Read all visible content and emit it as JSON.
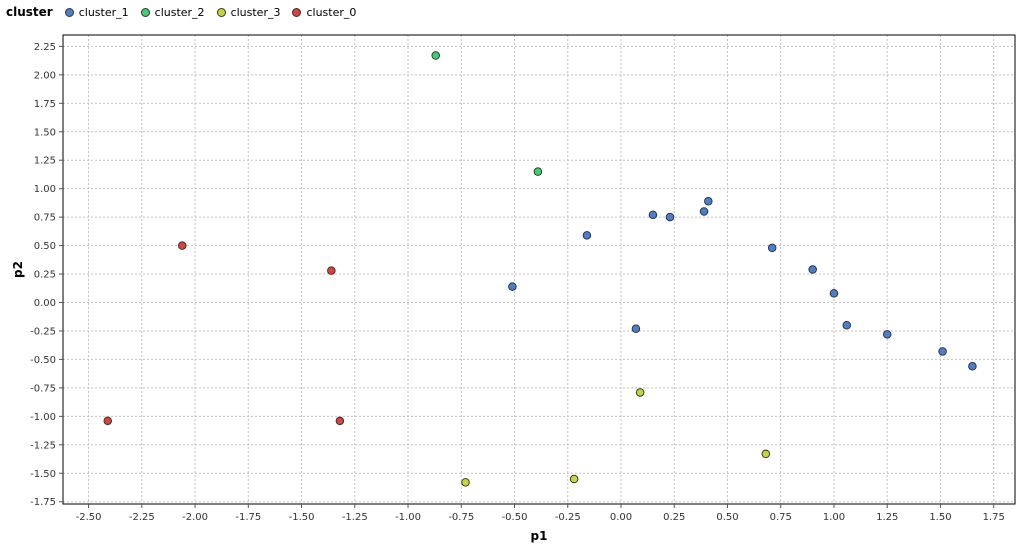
{
  "chart_data": {
    "type": "scatter",
    "title": "",
    "legend_title": "cluster",
    "legend_position": "top-left",
    "xlabel": "p1",
    "ylabel": "p2",
    "xlim": [
      -2.62,
      1.85
    ],
    "ylim": [
      -1.77,
      2.35
    ],
    "grid": true,
    "xticks": [
      -2.5,
      -2.25,
      -2.0,
      -1.75,
      -1.5,
      -1.25,
      -1.0,
      -0.75,
      -0.5,
      -0.25,
      0.0,
      0.25,
      0.5,
      0.75,
      1.0,
      1.25,
      1.5,
      1.75
    ],
    "xtick_labels": [
      "-2.50",
      "-2.25",
      "-2.00",
      "-1.75",
      "-1.50",
      "-1.25",
      "-1.00",
      "-0.75",
      "-0.50",
      "-0.25",
      "0.00",
      "0.25",
      "0.50",
      "0.75",
      "1.00",
      "1.25",
      "1.50",
      "1.75"
    ],
    "yticks": [
      -1.75,
      -1.5,
      -1.25,
      -1.0,
      -0.75,
      -0.5,
      -0.25,
      0.0,
      0.25,
      0.5,
      0.75,
      1.0,
      1.25,
      1.5,
      1.75,
      2.0,
      2.25
    ],
    "ytick_labels": [
      "-1.75",
      "-1.50",
      "-1.25",
      "-1.00",
      "-0.75",
      "-0.50",
      "-0.25",
      "0.00",
      "0.25",
      "0.50",
      "0.75",
      "1.00",
      "1.25",
      "1.50",
      "1.75",
      "2.00",
      "2.25"
    ],
    "series": [
      {
        "name": "cluster_1",
        "color": "#4a7fcf",
        "points": [
          [
            -0.51,
            0.14
          ],
          [
            -0.16,
            0.59
          ],
          [
            0.07,
            -0.23
          ],
          [
            0.15,
            0.77
          ],
          [
            0.23,
            0.75
          ],
          [
            0.39,
            0.8
          ],
          [
            0.41,
            0.89
          ],
          [
            0.71,
            0.48
          ],
          [
            0.9,
            0.29
          ],
          [
            1.0,
            0.08
          ],
          [
            1.06,
            -0.2
          ],
          [
            1.25,
            -0.28
          ],
          [
            1.51,
            -0.43
          ],
          [
            1.65,
            -0.56
          ]
        ]
      },
      {
        "name": "cluster_2",
        "color": "#3fcf6f",
        "points": [
          [
            -0.87,
            2.17
          ],
          [
            -0.39,
            1.15
          ]
        ]
      },
      {
        "name": "cluster_3",
        "color": "#c4d83a",
        "points": [
          [
            -0.73,
            -1.58
          ],
          [
            -0.22,
            -1.55
          ],
          [
            0.09,
            -0.79
          ],
          [
            0.68,
            -1.33
          ]
        ]
      },
      {
        "name": "cluster_0",
        "color": "#d9413c",
        "points": [
          [
            -2.41,
            -1.04
          ],
          [
            -2.06,
            0.5
          ],
          [
            -1.36,
            0.28
          ],
          [
            -1.32,
            -1.04
          ]
        ]
      }
    ]
  }
}
